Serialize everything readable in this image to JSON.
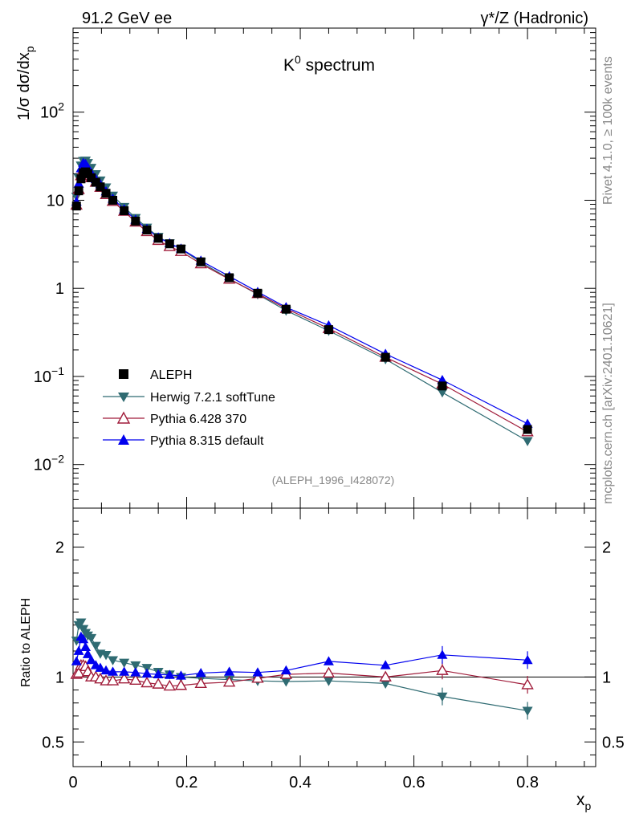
{
  "header": {
    "left_label": "91.2 GeV ee",
    "right_label": "γ*/Z (Hadronic)"
  },
  "side_texts": {
    "rivet": "Rivet 4.1.0, ≥ 100k events",
    "mcplots": "mcplots.cern.ch [arXiv:2401.10621]"
  },
  "colors": {
    "data": "#000000",
    "herwig": "#2f6b72",
    "pythia6": "#a01c3a",
    "pythia8": "#0000ee"
  },
  "chart_data": [
    {
      "type": "line",
      "title": "K",
      "title_sup": "0",
      "title_rest": " spectrum",
      "ylabel": "1/σ  dσ/dx",
      "ylabel_sub": "p",
      "yscale": "log",
      "ylim": [
        0.0032,
        900
      ],
      "xlim": [
        0,
        0.92
      ],
      "yticks": [
        {
          "value": 0.01,
          "base": "10",
          "exp": "−2"
        },
        {
          "value": 0.1,
          "base": "10",
          "exp": "−1"
        },
        {
          "value": 1,
          "base": "1",
          "exp": ""
        },
        {
          "value": 10,
          "base": "10",
          "exp": ""
        },
        {
          "value": 100,
          "base": "10",
          "exp": "2"
        }
      ],
      "analysis_label": "(ALEPH_1996_I428072)",
      "x": [
        0.006,
        0.01,
        0.014,
        0.018,
        0.022,
        0.026,
        0.032,
        0.04,
        0.048,
        0.058,
        0.07,
        0.09,
        0.11,
        0.13,
        0.15,
        0.17,
        0.19,
        0.225,
        0.275,
        0.325,
        0.375,
        0.45,
        0.55,
        0.65,
        0.8
      ],
      "series": [
        {
          "name": "ALEPH",
          "key": "data",
          "marker": "square",
          "values": [
            8.6,
            12.8,
            17.5,
            20.5,
            21.0,
            20.0,
            18.0,
            16.0,
            14.2,
            12.0,
            10.0,
            7.6,
            5.8,
            4.6,
            3.7,
            3.2,
            2.8,
            2.0,
            1.32,
            0.88,
            0.58,
            0.34,
            0.165,
            0.078,
            0.025
          ]
        },
        {
          "name": "Herwig 7.2.1 softTune",
          "key": "herwig",
          "marker": "tri-down",
          "values": [
            11.0,
            18.0,
            24.8,
            28.0,
            28.2,
            26.5,
            23.4,
            19.8,
            16.8,
            14.0,
            11.3,
            8.4,
            6.3,
            4.9,
            3.85,
            3.25,
            2.8,
            1.98,
            1.29,
            0.855,
            0.56,
            0.33,
            0.157,
            0.066,
            0.0185
          ]
        },
        {
          "name": "Pythia 6.428 370",
          "key": "pythia6",
          "marker": "tri-up-open",
          "values": [
            8.8,
            13.2,
            19.0,
            22.3,
            22.6,
            20.8,
            18.0,
            16.0,
            14.0,
            11.6,
            9.7,
            7.5,
            5.65,
            4.4,
            3.5,
            2.98,
            2.62,
            1.9,
            1.27,
            0.87,
            0.59,
            0.35,
            0.165,
            0.082,
            0.0235
          ]
        },
        {
          "name": "Pythia 8.315 default",
          "key": "pythia8",
          "marker": "tri-up",
          "values": [
            9.6,
            15.4,
            23.0,
            26.5,
            25.8,
            23.5,
            20.4,
            17.4,
            15.2,
            12.6,
            10.4,
            7.9,
            6.0,
            4.72,
            3.78,
            3.25,
            2.82,
            2.06,
            1.37,
            0.91,
            0.61,
            0.38,
            0.18,
            0.091,
            0.029
          ]
        }
      ],
      "legend_position": "lower-left"
    },
    {
      "type": "line",
      "ylabel": "Ratio to ALEPH",
      "xlabel": "x",
      "xlabel_sub": "p",
      "ylim": [
        0.31,
        2.3
      ],
      "xlim": [
        0,
        0.92
      ],
      "yticks": [
        0.5,
        1,
        2
      ],
      "ytick_labels": [
        "0.5",
        "1",
        "2"
      ],
      "xticks": [
        0,
        0.2,
        0.4,
        0.6,
        0.8
      ],
      "xtick_labels": [
        "0",
        "0.2",
        "0.4",
        "0.6",
        "0.8"
      ],
      "reference": 1,
      "x": [
        0.006,
        0.01,
        0.014,
        0.018,
        0.022,
        0.026,
        0.032,
        0.04,
        0.048,
        0.058,
        0.07,
        0.09,
        0.11,
        0.13,
        0.15,
        0.17,
        0.19,
        0.225,
        0.275,
        0.325,
        0.375,
        0.45,
        0.55,
        0.65,
        0.8
      ],
      "series": [
        {
          "name": "Herwig 7.2.1 softTune",
          "key": "herwig",
          "marker": "tri-down",
          "values": [
            1.28,
            1.4,
            1.42,
            1.37,
            1.34,
            1.32,
            1.3,
            1.24,
            1.18,
            1.17,
            1.13,
            1.11,
            1.09,
            1.07,
            1.04,
            1.02,
            1.0,
            0.99,
            0.98,
            0.97,
            0.965,
            0.97,
            0.95,
            0.85,
            0.74
          ]
        },
        {
          "name": "Pythia 6.428 370",
          "key": "pythia6",
          "marker": "tri-up-open",
          "values": [
            1.02,
            1.03,
            1.09,
            1.09,
            1.08,
            1.04,
            1.0,
            1.0,
            0.985,
            0.97,
            0.97,
            0.985,
            0.975,
            0.955,
            0.945,
            0.93,
            0.935,
            0.95,
            0.96,
            0.99,
            1.02,
            1.03,
            1.0,
            1.05,
            0.94
          ]
        },
        {
          "name": "Pythia 8.315 default",
          "key": "pythia8",
          "marker": "tri-up",
          "values": [
            1.12,
            1.2,
            1.31,
            1.29,
            1.23,
            1.175,
            1.13,
            1.09,
            1.07,
            1.05,
            1.04,
            1.04,
            1.035,
            1.025,
            1.02,
            1.015,
            1.01,
            1.03,
            1.04,
            1.035,
            1.05,
            1.12,
            1.09,
            1.17,
            1.13
          ]
        }
      ]
    }
  ]
}
